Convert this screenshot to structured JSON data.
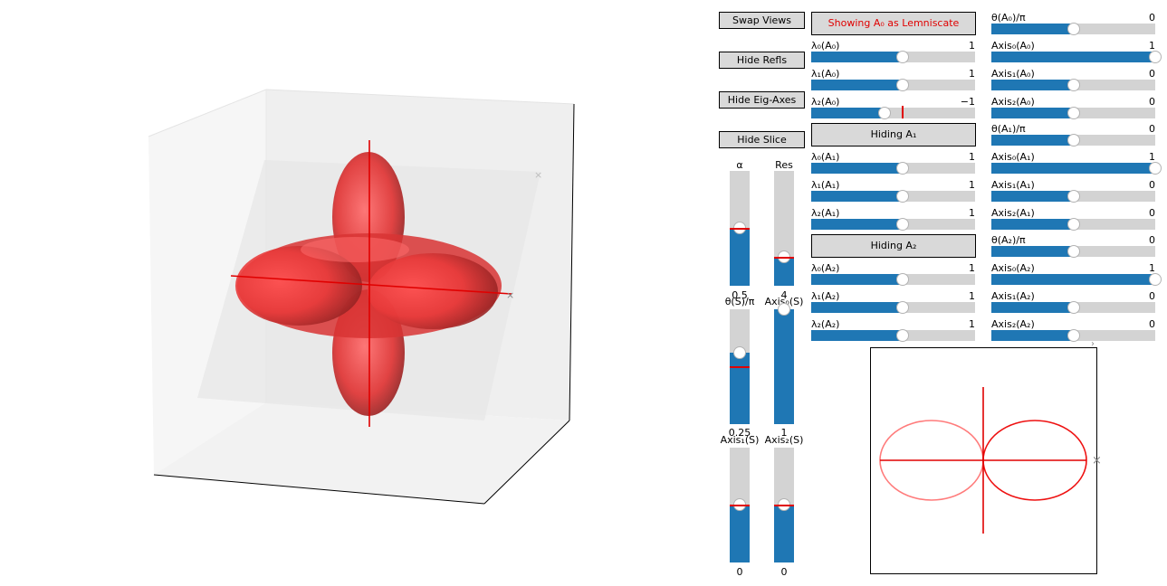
{
  "buttons": {
    "swap_views": "Swap Views",
    "hide_refls": "Hide Refls",
    "hide_eig_axes": "Hide Eig-Axes",
    "hide_slice": "Hide Slice",
    "showing_a0": "Showing A₀ as Lemniscate",
    "hiding_a1": "Hiding A₁",
    "hiding_a2": "Hiding A₂"
  },
  "colors": {
    "accent": "#1f77b4",
    "track": "#d3d3d3",
    "surface": "#ff3b3b",
    "lemniscate": "#ff7b7b",
    "axis": "#e00000",
    "button_text_active": "#e00000"
  },
  "vertical_sliders": [
    {
      "label": "α",
      "value_text": "0.5",
      "fraction": 0.5
    },
    {
      "label": "Res",
      "value_text": "4",
      "fraction": 0.25
    },
    {
      "label": "θ(S)/π",
      "value_text": "0.25",
      "fraction": 0.625
    },
    {
      "label": "Axis₀(S)",
      "value_text": "1",
      "fraction": 1.0
    },
    {
      "label": "Axis₁(S)",
      "value_text": "0",
      "fraction": 0.5
    },
    {
      "label": "Axis₂(S)",
      "value_text": "0",
      "fraction": 0.5
    }
  ],
  "left_sliders": [
    {
      "label": "λ₀(A₀)",
      "value_text": "1",
      "fraction": 0.56
    },
    {
      "label": "λ₁(A₀)",
      "value_text": "1",
      "fraction": 0.56
    },
    {
      "label": "λ₂(A₀)",
      "value_text": "−1",
      "fraction": 0.45
    },
    {
      "label": "λ₀(A₁)",
      "value_text": "1",
      "fraction": 0.56
    },
    {
      "label": "λ₁(A₁)",
      "value_text": "1",
      "fraction": 0.56
    },
    {
      "label": "λ₂(A₁)",
      "value_text": "1",
      "fraction": 0.56
    },
    {
      "label": "λ₀(A₂)",
      "value_text": "1",
      "fraction": 0.56
    },
    {
      "label": "λ₁(A₂)",
      "value_text": "1",
      "fraction": 0.56
    },
    {
      "label": "λ₂(A₂)",
      "value_text": "1",
      "fraction": 0.56
    }
  ],
  "right_sliders": [
    {
      "label": "θ(A₀)/π",
      "value_text": "0",
      "fraction": 0.5
    },
    {
      "label": "Axis₀(A₀)",
      "value_text": "1",
      "fraction": 1.0
    },
    {
      "label": "Axis₁(A₀)",
      "value_text": "0",
      "fraction": 0.5
    },
    {
      "label": "Axis₂(A₀)",
      "value_text": "0",
      "fraction": 0.5
    },
    {
      "label": "θ(A₁)/π",
      "value_text": "0",
      "fraction": 0.5
    },
    {
      "label": "Axis₀(A₁)",
      "value_text": "1",
      "fraction": 1.0
    },
    {
      "label": "Axis₁(A₁)",
      "value_text": "0",
      "fraction": 0.5
    },
    {
      "label": "Axis₂(A₁)",
      "value_text": "0",
      "fraction": 0.5
    },
    {
      "label": "θ(A₂)/π",
      "value_text": "0",
      "fraction": 0.5
    },
    {
      "label": "Axis₀(A₂)",
      "value_text": "1",
      "fraction": 1.0
    },
    {
      "label": "Axis₁(A₂)",
      "value_text": "0",
      "fraction": 0.5
    },
    {
      "label": "Axis₂(A₂)",
      "value_text": "0",
      "fraction": 0.5
    }
  ]
}
